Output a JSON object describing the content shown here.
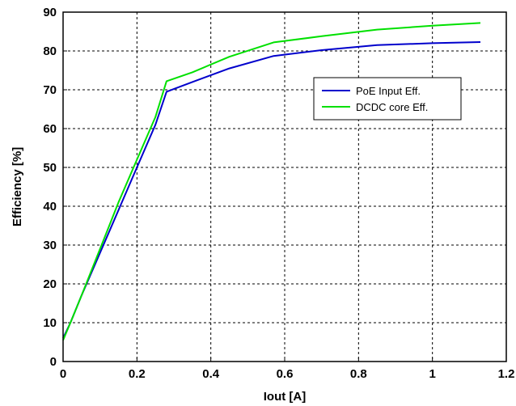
{
  "chart_data": {
    "type": "line",
    "xlabel": "Iout [A]",
    "ylabel": "Efficiency [%]",
    "xlim": [
      0,
      1.2
    ],
    "ylim": [
      0,
      90
    ],
    "xticks": [
      "0",
      "0.2",
      "0.4",
      "0.6",
      "0.8",
      "1",
      "1.2"
    ],
    "yticks": [
      "0",
      "10",
      "20",
      "30",
      "40",
      "50",
      "60",
      "70",
      "80",
      "90"
    ],
    "grid": true,
    "legend_position": "upper-right",
    "series": [
      {
        "name": "PoE Input Eff.",
        "color": "#0000cc",
        "x": [
          0.0,
          0.02,
          0.05,
          0.1,
          0.15,
          0.2,
          0.25,
          0.28,
          0.35,
          0.45,
          0.57,
          0.7,
          0.85,
          1.0,
          1.13
        ],
        "y": [
          6,
          10,
          17,
          28,
          39,
          50,
          61,
          69.5,
          72,
          75.5,
          78.7,
          80.2,
          81.5,
          82,
          82.3
        ]
      },
      {
        "name": "DCDC core Eff.",
        "color": "#00e000",
        "x": [
          0.0,
          0.02,
          0.05,
          0.1,
          0.15,
          0.2,
          0.25,
          0.28,
          0.35,
          0.45,
          0.57,
          0.7,
          0.85,
          1.0,
          1.13
        ],
        "y": [
          5.5,
          10,
          17,
          29,
          41,
          52,
          63,
          72.2,
          74.5,
          78.5,
          82.2,
          83.8,
          85.5,
          86.5,
          87.2
        ]
      }
    ]
  }
}
